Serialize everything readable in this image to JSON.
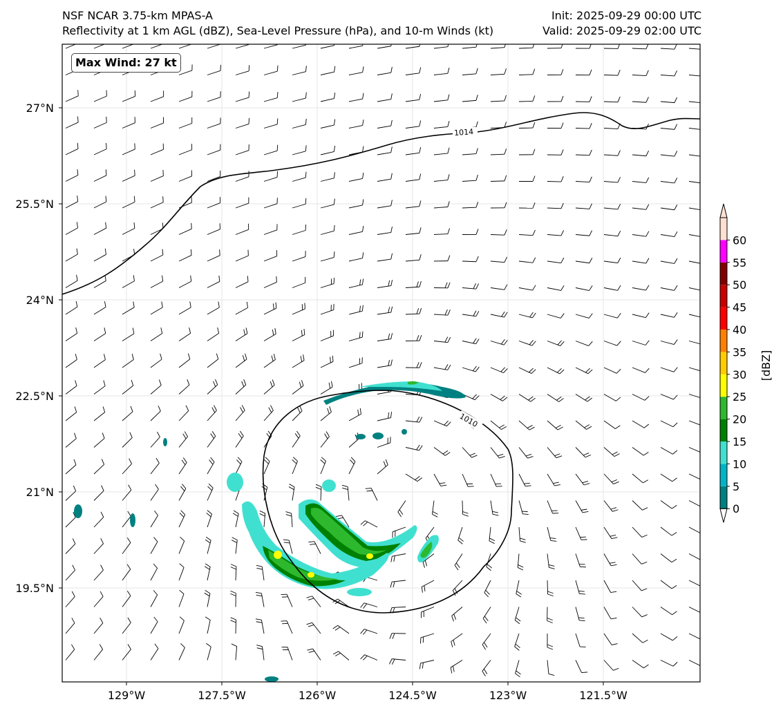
{
  "header": {
    "title_left_1": "NSF NCAR 3.75-km MPAS-A",
    "title_left_2": "Reflectivity at 1 km AGL (dBZ), Sea-Level Pressure (hPa), and 10-m Winds (kt)",
    "title_right_1": "Init: 2025-09-29 00:00 UTC",
    "title_right_2": "Valid: 2025-09-29 02:00 UTC"
  },
  "map": {
    "max_wind_label": "Max Wind: 27 kt",
    "lat_labels": [
      "27°N",
      "25.5°N",
      "24°N",
      "22.5°N",
      "21°N",
      "19.5°N"
    ],
    "lon_labels": [
      "129°W",
      "127.5°W",
      "126°W",
      "124.5°W",
      "123°W",
      "121.5°W"
    ],
    "isobars": [
      {
        "value": "1014",
        "label": "1014"
      },
      {
        "value": "1010",
        "label": "1010"
      }
    ],
    "storm_center": {
      "lat": 21.0,
      "lon": -124.8
    }
  },
  "colorbar": {
    "label": "[dBZ]",
    "ticks": [
      "0",
      "5",
      "10",
      "15",
      "20",
      "25",
      "30",
      "35",
      "40",
      "45",
      "50",
      "55",
      "60"
    ],
    "colors": [
      "#008080",
      "#00b4c8",
      "#40e0d0",
      "#008000",
      "#2db82d",
      "#ffff00",
      "#ffcc00",
      "#ff8000",
      "#ff0000",
      "#c80000",
      "#800000",
      "#ff00ff",
      "#ffe0d0"
    ]
  }
}
